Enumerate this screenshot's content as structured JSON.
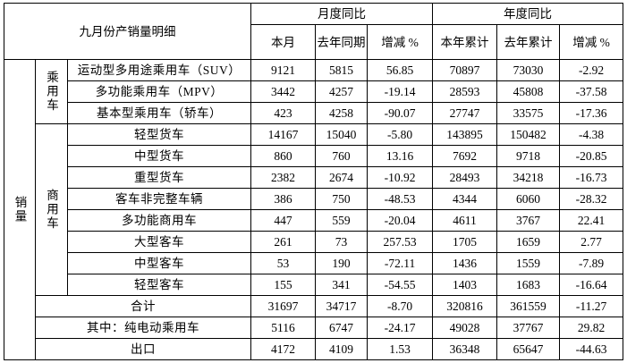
{
  "header": {
    "title": "九月份产销量明细",
    "groups": [
      "月度同比",
      "年度同比"
    ],
    "columns": [
      "本月",
      "去年同期",
      "增减 %",
      "本年累计",
      "去年累计",
      "增减 %"
    ]
  },
  "side_label": "销量",
  "sections": [
    {
      "label": "乘用车",
      "rows": [
        {
          "label": "运动型多用途乘用车（SUV）",
          "values": [
            "9121",
            "5815",
            "56.85",
            "70897",
            "73030",
            "-2.92"
          ]
        },
        {
          "label": "多功能乘用车（MPV）",
          "values": [
            "3442",
            "4257",
            "-19.14",
            "28593",
            "45808",
            "-37.58"
          ]
        },
        {
          "label": "基本型乘用车（轿车）",
          "values": [
            "423",
            "4258",
            "-90.07",
            "27747",
            "33575",
            "-17.36"
          ]
        }
      ]
    },
    {
      "label": "商用车",
      "rows": [
        {
          "label": "轻型货车",
          "values": [
            "14167",
            "15040",
            "-5.80",
            "143895",
            "150482",
            "-4.38"
          ]
        },
        {
          "label": "中型货车",
          "values": [
            "860",
            "760",
            "13.16",
            "7692",
            "9718",
            "-20.85"
          ]
        },
        {
          "label": "重型货车",
          "values": [
            "2382",
            "2674",
            "-10.92",
            "28493",
            "34218",
            "-16.73"
          ]
        },
        {
          "label": "客车非完整车辆",
          "values": [
            "386",
            "750",
            "-48.53",
            "4344",
            "6060",
            "-28.32"
          ]
        },
        {
          "label": "多功能商用车",
          "values": [
            "447",
            "559",
            "-20.04",
            "4611",
            "3767",
            "22.41"
          ]
        },
        {
          "label": "大型客车",
          "values": [
            "261",
            "73",
            "257.53",
            "1705",
            "1659",
            "2.77"
          ]
        },
        {
          "label": "中型客车",
          "values": [
            "53",
            "190",
            "-72.11",
            "1436",
            "1559",
            "-7.89"
          ]
        },
        {
          "label": "轻型客车",
          "values": [
            "155",
            "341",
            "-54.55",
            "1403",
            "1683",
            "-16.64"
          ]
        }
      ]
    }
  ],
  "summary_rows": [
    {
      "label": "合计",
      "values": [
        "31697",
        "34717",
        "-8.70",
        "320816",
        "361559",
        "-11.27"
      ]
    },
    {
      "label": "其中：纯电动乘用车",
      "values": [
        "5116",
        "6747",
        "-24.17",
        "49028",
        "37767",
        "29.82"
      ]
    },
    {
      "label": "出口",
      "values": [
        "4172",
        "4109",
        "1.53",
        "36348",
        "65647",
        "-44.63"
      ]
    }
  ]
}
